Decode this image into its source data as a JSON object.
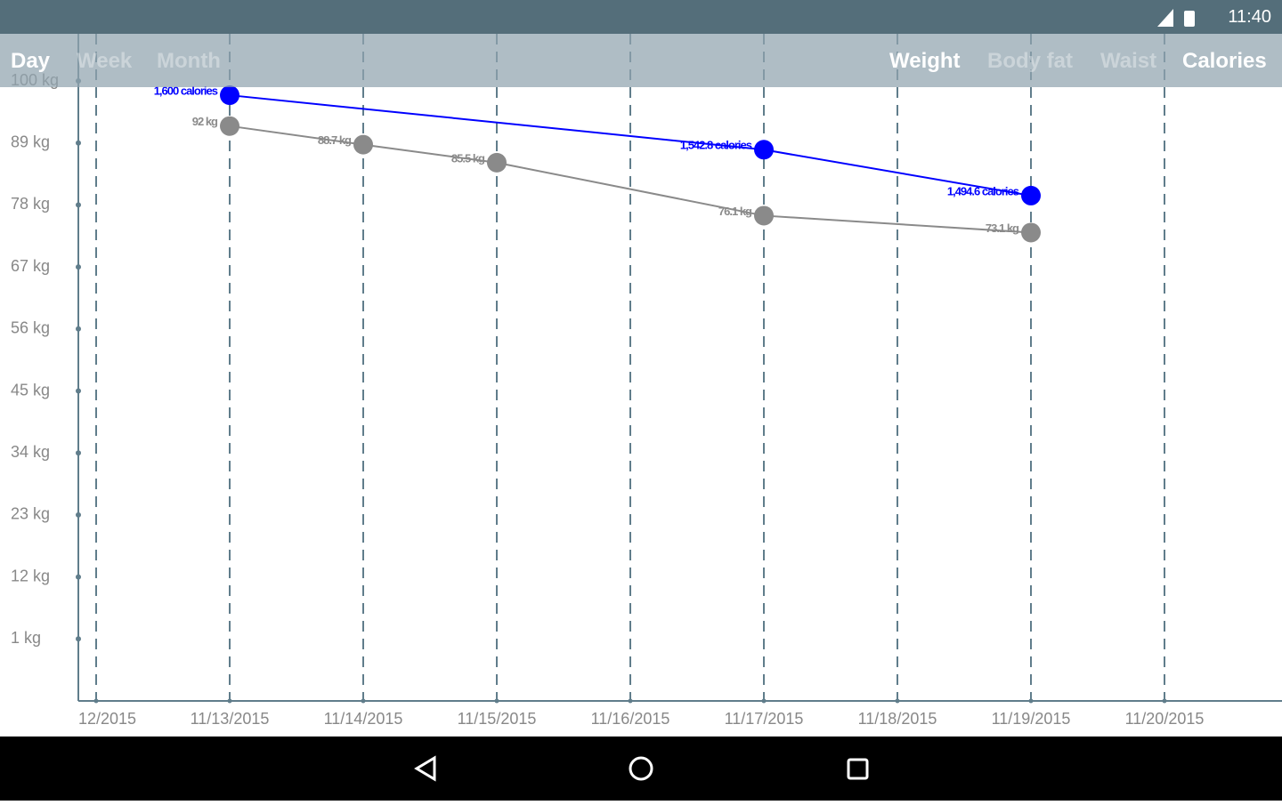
{
  "status_bar": {
    "time": "11:40"
  },
  "period_tabs": [
    {
      "label": "Day",
      "active": true
    },
    {
      "label": "Week",
      "active": false
    },
    {
      "label": "Month",
      "active": false
    }
  ],
  "metric_tabs": [
    {
      "label": "Weight",
      "active": true
    },
    {
      "label": "Body fat",
      "active": false
    },
    {
      "label": "Waist",
      "active": false
    },
    {
      "label": "Calories",
      "active": true
    }
  ],
  "chart_data": {
    "type": "line",
    "xticks": [
      {
        "value": "11/12/2015",
        "label": "12/2015"
      },
      "11/13/2015",
      "11/14/2015",
      "11/15/2015",
      "11/16/2015",
      "11/17/2015",
      "11/18/2015",
      "11/19/2015",
      "11/20/2015"
    ],
    "ylim": [
      -10,
      100
    ],
    "yticks": [
      {
        "value": 100,
        "label": "100 kg"
      },
      {
        "value": 89,
        "label": "89 kg"
      },
      {
        "value": 78,
        "label": "78 kg"
      },
      {
        "value": 67,
        "label": "67 kg"
      },
      {
        "value": 56,
        "label": "56 kg"
      },
      {
        "value": 45,
        "label": "45 kg"
      },
      {
        "value": 34,
        "label": "34 kg"
      },
      {
        "value": 23,
        "label": "23 kg"
      },
      {
        "value": 12,
        "label": "12 kg"
      },
      {
        "value": 1,
        "label": "1 kg"
      }
    ],
    "y2lim": [
      964,
      1615
    ],
    "grid": true,
    "series": [
      {
        "name": "Weight",
        "color": "#8a8a8a",
        "x": [
          "11/13/2015",
          "11/14/2015",
          "11/15/2015",
          "11/17/2015",
          "11/19/2015"
        ],
        "values": [
          92,
          88.7,
          85.5,
          76.1,
          73.1
        ],
        "value_labels": [
          "92 kg",
          "88.7 kg",
          "85.5 kg",
          "76.1 kg",
          "73.1 kg"
        ]
      },
      {
        "name": "Calories",
        "color": "#0000ff",
        "axis": "y2",
        "x": [
          "11/13/2015",
          "11/17/2015",
          "11/19/2015"
        ],
        "values": [
          1600,
          1542.8,
          1494.6
        ],
        "value_labels": [
          "1,600 calories",
          "1,542.8 calories",
          "1,494.6 calories"
        ]
      }
    ]
  }
}
